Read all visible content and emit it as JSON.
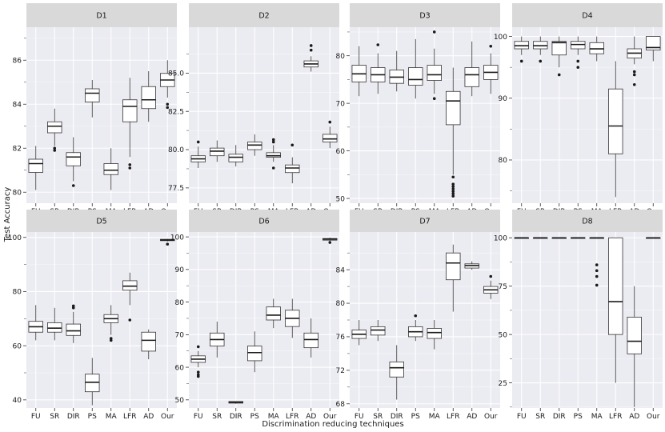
{
  "figure": {
    "xlabel": "Discrimination reducing techniques",
    "ylabel": "Test Accuracy"
  },
  "chart_data": [
    {
      "type": "box",
      "panel": "D1",
      "ylim": [
        79.5,
        87.5
      ],
      "yticks": [
        80,
        82,
        84,
        86
      ],
      "grid": true,
      "categories": [
        "FU",
        "SR",
        "DIR",
        "PS",
        "MA",
        "LFR",
        "AD",
        "Our"
      ],
      "series": [
        {
          "name": "FU",
          "min": 80.1,
          "q1": 80.9,
          "median": 81.3,
          "q3": 81.5,
          "max": 82.1,
          "outliers": []
        },
        {
          "name": "SR",
          "min": 82.1,
          "q1": 82.7,
          "median": 83.0,
          "q3": 83.2,
          "max": 83.8,
          "outliers": [
            81.9,
            82.0
          ]
        },
        {
          "name": "DIR",
          "min": 80.5,
          "q1": 81.2,
          "median": 81.6,
          "q3": 81.8,
          "max": 82.5,
          "outliers": [
            80.3
          ]
        },
        {
          "name": "PS",
          "min": 83.4,
          "q1": 84.1,
          "median": 84.5,
          "q3": 84.7,
          "max": 85.1,
          "outliers": []
        },
        {
          "name": "MA",
          "min": 80.1,
          "q1": 80.8,
          "median": 81.0,
          "q3": 81.3,
          "max": 82.0,
          "outliers": []
        },
        {
          "name": "LFR",
          "min": 81.6,
          "q1": 83.2,
          "median": 83.9,
          "q3": 84.2,
          "max": 85.2,
          "outliers": [
            81.1,
            81.25
          ]
        },
        {
          "name": "AD",
          "min": 83.2,
          "q1": 83.8,
          "median": 84.2,
          "q3": 84.8,
          "max": 85.5,
          "outliers": []
        },
        {
          "name": "Our",
          "min": 84.3,
          "q1": 84.8,
          "median": 85.1,
          "q3": 85.4,
          "max": 86.0,
          "outliers": [
            83.85,
            84.0
          ]
        }
      ]
    },
    {
      "type": "box",
      "panel": "D2",
      "ylim": [
        76.5,
        88.0
      ],
      "yticks": [
        77.5,
        80.0,
        82.5,
        85.0
      ],
      "grid": true,
      "categories": [
        "FU",
        "SR",
        "DIR",
        "PS",
        "MA",
        "LFR",
        "AD",
        "Our"
      ],
      "series": [
        {
          "name": "FU",
          "min": 78.8,
          "q1": 79.2,
          "median": 79.4,
          "q3": 79.6,
          "max": 80.2,
          "outliers": [
            80.5
          ]
        },
        {
          "name": "SR",
          "min": 79.2,
          "q1": 79.6,
          "median": 79.9,
          "q3": 80.1,
          "max": 80.6,
          "outliers": []
        },
        {
          "name": "DIR",
          "min": 78.9,
          "q1": 79.2,
          "median": 79.5,
          "q3": 79.7,
          "max": 80.3,
          "outliers": []
        },
        {
          "name": "PS",
          "min": 79.6,
          "q1": 80.0,
          "median": 80.3,
          "q3": 80.5,
          "max": 81.0,
          "outliers": []
        },
        {
          "name": "MA",
          "min": 79.2,
          "q1": 79.5,
          "median": 79.6,
          "q3": 79.8,
          "max": 80.3,
          "outliers": [
            80.5,
            80.65,
            78.8
          ]
        },
        {
          "name": "LFR",
          "min": 77.8,
          "q1": 78.5,
          "median": 78.8,
          "q3": 79.0,
          "max": 79.5,
          "outliers": [
            80.3
          ]
        },
        {
          "name": "AD",
          "min": 85.1,
          "q1": 85.4,
          "median": 85.6,
          "q3": 85.8,
          "max": 86.1,
          "outliers": [
            86.5,
            86.8
          ]
        },
        {
          "name": "Our",
          "min": 80.1,
          "q1": 80.5,
          "median": 80.7,
          "q3": 81.0,
          "max": 81.5,
          "outliers": [
            81.8
          ]
        }
      ]
    },
    {
      "type": "box",
      "panel": "D3",
      "ylim": [
        49,
        86
      ],
      "yticks": [
        50,
        60,
        70,
        80
      ],
      "grid": true,
      "categories": [
        "FU",
        "SR",
        "DIR",
        "PS",
        "MA",
        "LFR",
        "AD",
        "Our"
      ],
      "series": [
        {
          "name": "FU",
          "min": 71.5,
          "q1": 74.5,
          "median": 76.2,
          "q3": 78.0,
          "max": 82.0,
          "outliers": []
        },
        {
          "name": "SR",
          "min": 72.0,
          "q1": 74.5,
          "median": 76.0,
          "q3": 77.5,
          "max": 80.5,
          "outliers": [
            82.3
          ]
        },
        {
          "name": "DIR",
          "min": 72.5,
          "q1": 74.2,
          "median": 75.5,
          "q3": 77.0,
          "max": 81.0,
          "outliers": []
        },
        {
          "name": "PS",
          "min": 71.0,
          "q1": 73.8,
          "median": 75.0,
          "q3": 77.5,
          "max": 83.5,
          "outliers": []
        },
        {
          "name": "MA",
          "min": 72.0,
          "q1": 74.8,
          "median": 76.0,
          "q3": 78.0,
          "max": 81.5,
          "outliers": [
            85.0,
            71.0
          ]
        },
        {
          "name": "LFR",
          "min": 55.0,
          "q1": 65.5,
          "median": 70.5,
          "q3": 72.5,
          "max": 77.5,
          "outliers": [
            54.5,
            53.0,
            52.5,
            52.0,
            51.5,
            51.0,
            50.5
          ]
        },
        {
          "name": "AD",
          "min": 71.5,
          "q1": 73.5,
          "median": 76.0,
          "q3": 77.5,
          "max": 83.0,
          "outliers": []
        },
        {
          "name": "Our",
          "min": 72.0,
          "q1": 75.0,
          "median": 76.5,
          "q3": 78.0,
          "max": 80.5,
          "outliers": [
            82.0
          ]
        }
      ]
    },
    {
      "type": "box",
      "panel": "D4",
      "ylim": [
        73,
        101.5
      ],
      "yticks": [
        80,
        90,
        100
      ],
      "grid": true,
      "categories": [
        "FU",
        "SR",
        "DIR",
        "PS",
        "MA",
        "LFR",
        "AD",
        "Our"
      ],
      "series": [
        {
          "name": "FU",
          "min": 97.0,
          "q1": 98.0,
          "median": 98.5,
          "q3": 99.2,
          "max": 100.0,
          "outliers": [
            96.0
          ]
        },
        {
          "name": "SR",
          "min": 97.0,
          "q1": 98.0,
          "median": 98.5,
          "q3": 99.2,
          "max": 100.0,
          "outliers": [
            96.0
          ]
        },
        {
          "name": "DIR",
          "min": 95.0,
          "q1": 97.0,
          "median": 99.0,
          "q3": 99.2,
          "max": 100.0,
          "outliers": [
            93.8
          ]
        },
        {
          "name": "PS",
          "min": 97.0,
          "q1": 98.0,
          "median": 98.7,
          "q3": 99.2,
          "max": 100.0,
          "outliers": [
            96.0,
            95.0
          ]
        },
        {
          "name": "MA",
          "min": 96.0,
          "q1": 97.2,
          "median": 98.0,
          "q3": 99.0,
          "max": 100.0,
          "outliers": []
        },
        {
          "name": "LFR",
          "min": 74.0,
          "q1": 81.0,
          "median": 85.5,
          "q3": 91.5,
          "max": 96.0,
          "outliers": []
        },
        {
          "name": "AD",
          "min": 95.5,
          "q1": 96.5,
          "median": 97.3,
          "q3": 98.0,
          "max": 100.0,
          "outliers": [
            94.3,
            93.8,
            92.2
          ]
        },
        {
          "name": "Our",
          "min": 96.0,
          "q1": 97.8,
          "median": 98.2,
          "q3": 100.0,
          "max": 100.0,
          "outliers": []
        }
      ]
    },
    {
      "type": "box",
      "panel": "D5",
      "ylim": [
        37,
        102
      ],
      "yticks": [
        40,
        60,
        80,
        100
      ],
      "grid": true,
      "categories": [
        "FU",
        "SR",
        "DIR",
        "PS",
        "MA",
        "LFR",
        "AD",
        "Our"
      ],
      "series": [
        {
          "name": "FU",
          "min": 62.0,
          "q1": 65.0,
          "median": 67.0,
          "q3": 69.0,
          "max": 75.0,
          "outliers": []
        },
        {
          "name": "SR",
          "min": 62.0,
          "q1": 65.0,
          "median": 66.5,
          "q3": 68.5,
          "max": 74.0,
          "outliers": []
        },
        {
          "name": "DIR",
          "min": 61.0,
          "q1": 63.8,
          "median": 65.5,
          "q3": 68.0,
          "max": 72.5,
          "outliers": [
            74.0,
            74.7
          ]
        },
        {
          "name": "PS",
          "min": 38.0,
          "q1": 43.0,
          "median": 46.5,
          "q3": 49.5,
          "max": 55.5,
          "outliers": []
        },
        {
          "name": "MA",
          "min": 64.0,
          "q1": 68.5,
          "median": 70.0,
          "q3": 71.5,
          "max": 75.0,
          "outliers": [
            62.0,
            62.7
          ]
        },
        {
          "name": "LFR",
          "min": 75.0,
          "q1": 80.5,
          "median": 82.0,
          "q3": 84.0,
          "max": 87.0,
          "outliers": [
            69.5
          ]
        },
        {
          "name": "AD",
          "min": 55.0,
          "q1": 58.0,
          "median": 62.0,
          "q3": 65.0,
          "max": 66.0,
          "outliers": []
        },
        {
          "name": "Our",
          "min": 98.5,
          "q1": 98.8,
          "median": 99.0,
          "q3": 99.3,
          "max": 99.5,
          "outliers": [
            97.5
          ]
        }
      ]
    },
    {
      "type": "box",
      "panel": "D6",
      "ylim": [
        47.5,
        101.5
      ],
      "yticks": [
        50,
        60,
        70,
        80,
        90,
        100
      ],
      "grid": true,
      "categories": [
        "FU",
        "SR",
        "DIR",
        "PS",
        "MA",
        "LFR",
        "AD",
        "Our"
      ],
      "series": [
        {
          "name": "FU",
          "min": 60.0,
          "q1": 61.5,
          "median": 62.5,
          "q3": 63.5,
          "max": 65.0,
          "outliers": [
            66.3,
            58.5,
            57.7,
            57.2
          ]
        },
        {
          "name": "SR",
          "min": 63.0,
          "q1": 66.5,
          "median": 68.5,
          "q3": 70.5,
          "max": 74.0,
          "outliers": []
        },
        {
          "name": "DIR",
          "min": 48.8,
          "q1": 49.0,
          "median": 49.2,
          "q3": 49.5,
          "max": 49.6,
          "outliers": []
        },
        {
          "name": "PS",
          "min": 58.5,
          "q1": 62.0,
          "median": 64.5,
          "q3": 66.5,
          "max": 71.0,
          "outliers": []
        },
        {
          "name": "MA",
          "min": 72.0,
          "q1": 74.5,
          "median": 76.0,
          "q3": 78.5,
          "max": 81.0,
          "outliers": []
        },
        {
          "name": "LFR",
          "min": 69.0,
          "q1": 72.5,
          "median": 75.0,
          "q3": 77.5,
          "max": 81.0,
          "outliers": []
        },
        {
          "name": "AD",
          "min": 63.0,
          "q1": 66.0,
          "median": 68.5,
          "q3": 70.5,
          "max": 75.0,
          "outliers": []
        },
        {
          "name": "Our",
          "min": 98.8,
          "q1": 99.0,
          "median": 99.3,
          "q3": 99.5,
          "max": 99.8,
          "outliers": [
            98.3
          ]
        }
      ]
    },
    {
      "type": "box",
      "panel": "D7",
      "ylim": [
        67.5,
        88.5
      ],
      "yticks": [
        68,
        72,
        76,
        80,
        84
      ],
      "grid": true,
      "categories": [
        "FU",
        "SR",
        "DIR",
        "PS",
        "MA",
        "LFR",
        "AD",
        "Our"
      ],
      "series": [
        {
          "name": "FU",
          "min": 75.0,
          "q1": 75.8,
          "median": 76.3,
          "q3": 76.8,
          "max": 78.0,
          "outliers": []
        },
        {
          "name": "SR",
          "min": 75.5,
          "q1": 76.2,
          "median": 76.8,
          "q3": 77.2,
          "max": 78.0,
          "outliers": []
        },
        {
          "name": "DIR",
          "min": 68.5,
          "q1": 71.2,
          "median": 72.3,
          "q3": 73.0,
          "max": 75.0,
          "outliers": []
        },
        {
          "name": "PS",
          "min": 75.5,
          "q1": 76.0,
          "median": 76.6,
          "q3": 77.2,
          "max": 78.0,
          "outliers": [
            78.5
          ]
        },
        {
          "name": "MA",
          "min": 74.5,
          "q1": 75.8,
          "median": 76.5,
          "q3": 77.0,
          "max": 78.0,
          "outliers": []
        },
        {
          "name": "LFR",
          "min": 79.0,
          "q1": 82.8,
          "median": 84.8,
          "q3": 86.0,
          "max": 87.0,
          "outliers": []
        },
        {
          "name": "AD",
          "min": 84.0,
          "q1": 84.2,
          "median": 84.5,
          "q3": 84.7,
          "max": 85.0,
          "outliers": []
        },
        {
          "name": "Our",
          "min": 80.5,
          "q1": 81.2,
          "median": 81.6,
          "q3": 82.0,
          "max": 82.7,
          "outliers": [
            83.2
          ]
        }
      ]
    },
    {
      "type": "box",
      "panel": "D8",
      "ylim": [
        12,
        103
      ],
      "yticks": [
        25,
        50,
        75,
        100
      ],
      "grid": true,
      "categories": [
        "FU",
        "SR",
        "DIR",
        "PS",
        "MA",
        "LFR",
        "AD",
        "Our"
      ],
      "series": [
        {
          "name": "FU",
          "min": 100,
          "q1": 100,
          "median": 100,
          "q3": 100,
          "max": 100,
          "outliers": []
        },
        {
          "name": "SR",
          "min": 100,
          "q1": 100,
          "median": 100,
          "q3": 100,
          "max": 100,
          "outliers": []
        },
        {
          "name": "DIR",
          "min": 100,
          "q1": 100,
          "median": 100,
          "q3": 100,
          "max": 100,
          "outliers": []
        },
        {
          "name": "PS",
          "min": 100,
          "q1": 100,
          "median": 100,
          "q3": 100,
          "max": 100,
          "outliers": []
        },
        {
          "name": "MA",
          "min": 100,
          "q1": 100,
          "median": 100,
          "q3": 100,
          "max": 100,
          "outliers": [
            86.0,
            83.0,
            80.0,
            75.5
          ]
        },
        {
          "name": "LFR",
          "min": 25.0,
          "q1": 50.0,
          "median": 67.0,
          "q3": 100,
          "max": 100,
          "outliers": []
        },
        {
          "name": "AD",
          "min": 12.5,
          "q1": 40.0,
          "median": 46.5,
          "q3": 59.0,
          "max": 75.0,
          "outliers": []
        },
        {
          "name": "Our",
          "min": 100,
          "q1": 100,
          "median": 100,
          "q3": 100,
          "max": 100,
          "outliers": []
        }
      ]
    }
  ]
}
